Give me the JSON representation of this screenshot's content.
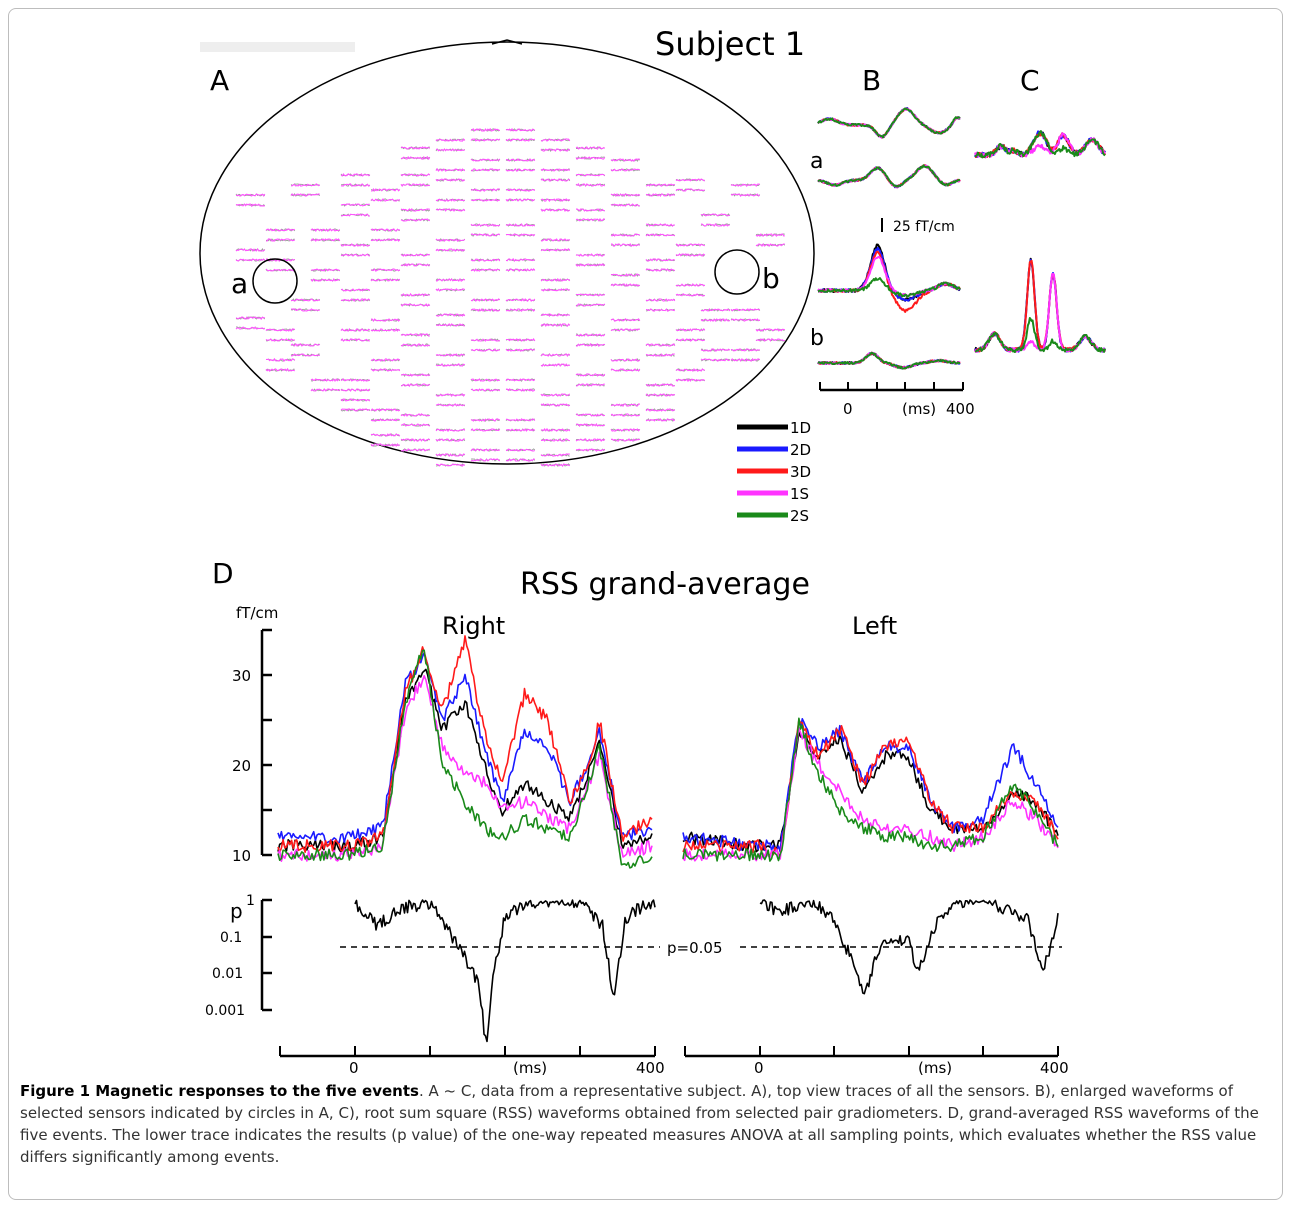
{
  "figure": {
    "subject_title": "Subject 1",
    "panel_labels": {
      "A": "A",
      "B": "B",
      "C": "C",
      "D": "D"
    },
    "circle_labels": {
      "a": "a",
      "b": "b"
    },
    "b_row_labels": {
      "a": "a",
      "b": "b"
    },
    "scale_bar": "25 fT/cm",
    "b_time_axis": {
      "start": "0",
      "unit": "(ms)",
      "end": "400"
    },
    "legend": [
      {
        "label": "1D",
        "color": "#000000"
      },
      {
        "label": "2D",
        "color": "#1a1aff"
      },
      {
        "label": "3D",
        "color": "#ff1a1a"
      },
      {
        "label": "1S",
        "color": "#ff33ff"
      },
      {
        "label": "2S",
        "color": "#1a8a1a"
      }
    ],
    "d_title": "RSS grand-average",
    "d_unit": "fT/cm",
    "d_hemis": {
      "right": "Right",
      "left": "Left"
    },
    "d_yticks": [
      "30",
      "20",
      "10"
    ],
    "p_label": "p",
    "p_ticks": [
      "1",
      "0.1",
      "0.01",
      "0.001"
    ],
    "p_threshold": "p=0.05",
    "d_time_axis": {
      "start": "0",
      "unit": "(ms)",
      "end": "400"
    }
  },
  "chart_data": [
    {
      "type": "line",
      "title": "Right",
      "ylabel": "fT/cm",
      "ylim": [
        9,
        35
      ],
      "x": [
        -100,
        0,
        40,
        70,
        95,
        120,
        150,
        175,
        200,
        230,
        260,
        290,
        315,
        330,
        360,
        400
      ],
      "series": [
        {
          "name": "1D",
          "values": [
            11,
            11,
            12,
            27,
            31,
            24,
            27,
            20,
            15,
            18,
            16,
            14,
            19,
            23,
            11,
            12
          ]
        },
        {
          "name": "2D",
          "values": [
            12,
            12,
            13,
            29,
            32,
            25,
            30,
            22,
            16,
            24,
            22,
            16,
            20,
            24,
            12,
            13
          ]
        },
        {
          "name": "3D",
          "values": [
            11,
            11,
            12,
            28,
            33,
            26,
            34,
            24,
            18,
            28,
            25,
            16,
            20,
            25,
            12,
            14
          ]
        },
        {
          "name": "1S",
          "values": [
            10,
            10,
            11,
            26,
            30,
            22,
            19,
            18,
            15,
            16,
            14,
            13,
            18,
            21,
            10,
            11
          ]
        },
        {
          "name": "2S",
          "values": [
            10,
            10,
            11,
            27,
            33,
            20,
            16,
            13,
            12,
            14,
            13,
            12,
            18,
            22,
            9,
            10
          ]
        }
      ]
    },
    {
      "type": "line",
      "title": "Left",
      "ylabel": "fT/cm",
      "ylim": [
        9,
        35
      ],
      "x": [
        -100,
        0,
        30,
        55,
        80,
        110,
        140,
        170,
        200,
        230,
        260,
        300,
        340,
        370,
        400
      ],
      "series": [
        {
          "name": "1D",
          "values": [
            12,
            11,
            11,
            24,
            21,
            23,
            17,
            21,
            21,
            15,
            13,
            13,
            17,
            16,
            12
          ]
        },
        {
          "name": "2D",
          "values": [
            12,
            11,
            11,
            25,
            22,
            24,
            18,
            22,
            22,
            16,
            13,
            14,
            22,
            18,
            13
          ]
        },
        {
          "name": "3D",
          "values": [
            11,
            11,
            10,
            25,
            21,
            24,
            18,
            22,
            23,
            16,
            13,
            13,
            17,
            16,
            12
          ]
        },
        {
          "name": "1S",
          "values": [
            10,
            10,
            10,
            24,
            20,
            17,
            14,
            13,
            13,
            12,
            11,
            12,
            16,
            14,
            11
          ]
        },
        {
          "name": "2S",
          "values": [
            10,
            10,
            10,
            25,
            19,
            15,
            13,
            12,
            12,
            11,
            11,
            12,
            18,
            15,
            11
          ]
        }
      ]
    },
    {
      "type": "line",
      "title": "p value (Right)",
      "ylabel": "p",
      "log_scale": true,
      "ylim": [
        5e-05,
        1
      ],
      "x": [
        0,
        30,
        60,
        100,
        130,
        150,
        165,
        175,
        185,
        200,
        240,
        300,
        330,
        345,
        360,
        390,
        400
      ],
      "series": [
        {
          "name": "p",
          "values": [
            0.8,
            0.2,
            0.6,
            0.8,
            0.1,
            0.02,
            0.005,
            0.0001,
            0.01,
            0.4,
            0.9,
            0.9,
            0.2,
            0.002,
            0.3,
            0.9,
            0.8
          ]
        }
      ]
    },
    {
      "type": "line",
      "title": "p value (Left)",
      "ylabel": "p",
      "log_scale": true,
      "ylim": [
        5e-05,
        1
      ],
      "x": [
        0,
        30,
        70,
        100,
        130,
        140,
        160,
        200,
        210,
        240,
        260,
        300,
        360,
        380,
        400
      ],
      "series": [
        {
          "name": "p",
          "values": [
            0.8,
            0.5,
            0.9,
            0.3,
            0.01,
            0.002,
            0.05,
            0.1,
            0.01,
            0.3,
            0.9,
            0.9,
            0.3,
            0.01,
            0.4
          ]
        }
      ]
    }
  ],
  "caption": {
    "bold": "Figure 1 Magnetic responses to the five events",
    "text": ". A ~ C, data from a representative subject. A), top view traces of all the sensors. B), enlarged waveforms of selected sensors indicated by circles in A, C), root sum square (RSS) waveforms obtained from selected pair gradiometers. D, grand-averaged RSS waveforms of the five events. The lower trace indicates the results (p value) of the one-way repeated measures ANOVA at all sampling points, which evaluates whether the RSS value differs significantly among events."
  }
}
